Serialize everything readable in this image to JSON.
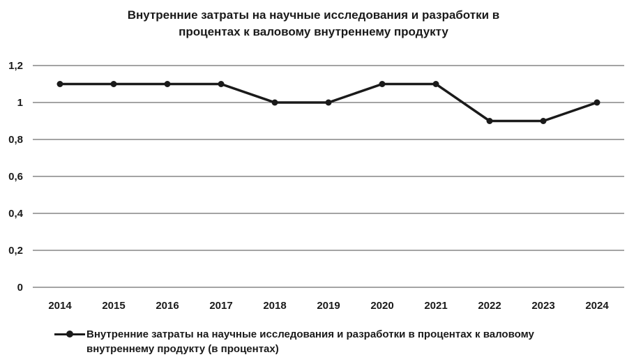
{
  "chart_data": {
    "type": "line",
    "title_line1": "Внутренние затраты на научные исследования и разработки в",
    "title_line2": "процентах к валовому внутреннему продукту",
    "categories": [
      "2014",
      "2015",
      "2016",
      "2017",
      "2018",
      "2019",
      "2020",
      "2021",
      "2022",
      "2023",
      "2024"
    ],
    "series": [
      {
        "name": "Внутренние затраты на научные исследования и разработки в процентах к валовому внутреннему продукту (в процентах)",
        "values": [
          1.1,
          1.1,
          1.1,
          1.1,
          1.0,
          1.0,
          1.1,
          1.1,
          0.9,
          0.9,
          1.0
        ],
        "color": "#1a1a1a"
      }
    ],
    "y_ticks": [
      "0",
      "0,2",
      "0,4",
      "0,6",
      "0,8",
      "1",
      "1,2"
    ],
    "ylim": [
      0,
      1.2
    ],
    "grid": true,
    "legend_position": "bottom"
  }
}
